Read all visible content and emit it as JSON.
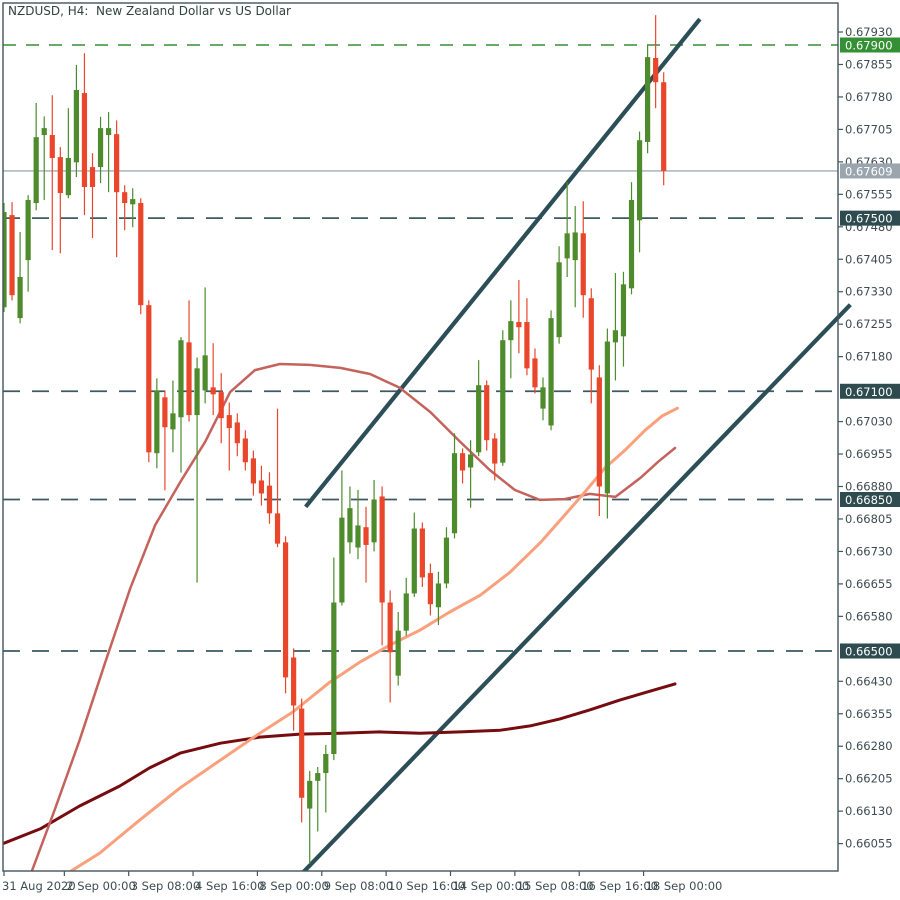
{
  "chart_data": {
    "type": "candlestick",
    "symbol": "NZDUSD",
    "timeframe": "H4",
    "title": "NZDUSD, H4:  New Zealand Dollar vs US Dollar",
    "candles_format": "[open, high, low, close]",
    "y_axis": {
      "tick_step": 0.00075,
      "visible_tick_labels": [
        "0.67930",
        "0.67855",
        "0.67780",
        "0.67705",
        "0.67630",
        "0.67555",
        "0.67480",
        "0.67405",
        "0.67330",
        "0.67255",
        "0.67180",
        "0.67030",
        "0.66955",
        "0.66880",
        "0.66805",
        "0.66730",
        "0.66655",
        "0.66580",
        "0.66430",
        "0.66355",
        "0.66280",
        "0.66205",
        "0.66130",
        "0.66055"
      ],
      "tick_prices": [
        0.6793,
        0.67855,
        0.6778,
        0.67705,
        0.6763,
        0.67555,
        0.6748,
        0.67405,
        0.6733,
        0.67255,
        0.6718,
        0.6703,
        0.66955,
        0.6688,
        0.66805,
        0.6673,
        0.66655,
        0.6658,
        0.6643,
        0.66355,
        0.6628,
        0.66205,
        0.6613,
        0.66055
      ]
    },
    "x_axis": {
      "tick_labels": [
        "31 Aug 2020",
        "2 Sep 00:00",
        "3 Sep 08:00",
        "4 Sep 16:00",
        "8 Sep 00:00",
        "9 Sep 08:00",
        "10 Sep 16:00",
        "14 Sep 00:00",
        "15 Sep 08:00",
        "16 Sep 16:00",
        "18 Sep 00:00"
      ],
      "tick_bars": [
        0,
        7.5,
        15.5,
        23.5,
        31.5,
        39.5,
        47.5,
        55.5,
        63.5,
        71.5,
        79.5
      ]
    },
    "current_price": {
      "price": 0.67609,
      "label": "0.67609"
    },
    "price_levels": [
      {
        "price": 0.679,
        "label": "0.67900",
        "style": "dashed",
        "color_key": "green"
      },
      {
        "price": 0.675,
        "label": "0.67500",
        "style": "dashed",
        "color_key": "dark"
      },
      {
        "price": 0.671,
        "label": "0.67100",
        "style": "dashed",
        "color_key": "dark"
      },
      {
        "price": 0.6685,
        "label": "0.66850",
        "style": "dashed",
        "color_key": "dark"
      },
      {
        "price": 0.665,
        "label": "0.66500",
        "style": "dashed",
        "color_key": "dark"
      }
    ],
    "trendlines": [
      {
        "name": "ascending-channel-upper",
        "from": [
          37.5,
          0.66833
        ],
        "to": [
          86.5,
          0.6796
        ]
      },
      {
        "name": "ascending-channel-lower",
        "from": [
          37.2,
          0.65989
        ],
        "to": [
          105.2,
          0.673
        ]
      }
    ],
    "moving_averages": [
      {
        "name": "ma-slow-maroon",
        "color_key": "maroon",
        "width": 3,
        "points": [
          [
            0,
            0.66056
          ],
          [
            4.5,
            0.66089
          ],
          [
            9.4,
            0.66142
          ],
          [
            14.4,
            0.66188
          ],
          [
            18.1,
            0.6623
          ],
          [
            21.9,
            0.66264
          ],
          [
            26.9,
            0.66287
          ],
          [
            31.8,
            0.66301
          ],
          [
            36.8,
            0.66308
          ],
          [
            41.8,
            0.6631
          ],
          [
            46.7,
            0.66313
          ],
          [
            51.7,
            0.6631
          ],
          [
            56.7,
            0.66313
          ],
          [
            61.7,
            0.66317
          ],
          [
            65.4,
            0.66327
          ],
          [
            69.1,
            0.66343
          ],
          [
            72.8,
            0.66364
          ],
          [
            76.6,
            0.66387
          ],
          [
            80.3,
            0.66407
          ],
          [
            83.4,
            0.66424
          ]
        ]
      },
      {
        "name": "ma-mid-rose",
        "color_key": "rose",
        "width": 2.5,
        "points": [
          [
            3.2,
            0.65978
          ],
          [
            6.3,
            0.66133
          ],
          [
            9.4,
            0.66294
          ],
          [
            12.6,
            0.66475
          ],
          [
            15.7,
            0.66645
          ],
          [
            18.8,
            0.66791
          ],
          [
            21.9,
            0.6689
          ],
          [
            25,
            0.66983
          ],
          [
            28.1,
            0.67098
          ],
          [
            31.2,
            0.67149
          ],
          [
            34.3,
            0.67163
          ],
          [
            38,
            0.67161
          ],
          [
            41.8,
            0.67154
          ],
          [
            45.5,
            0.6714
          ],
          [
            49.2,
            0.67108
          ],
          [
            53,
            0.67052
          ],
          [
            56.7,
            0.66983
          ],
          [
            60.4,
            0.66918
          ],
          [
            63.5,
            0.66872
          ],
          [
            66.6,
            0.66849
          ],
          [
            69.7,
            0.66851
          ],
          [
            72.8,
            0.66863
          ],
          [
            76,
            0.66856
          ],
          [
            79.1,
            0.669
          ],
          [
            81.3,
            0.66937
          ],
          [
            83.4,
            0.66969
          ]
        ]
      },
      {
        "name": "ma-fast-salmon",
        "color_key": "salmon",
        "width": 3,
        "points": [
          [
            7,
            0.65976
          ],
          [
            11.9,
            0.66033
          ],
          [
            16.9,
            0.6611
          ],
          [
            21.9,
            0.66184
          ],
          [
            26.9,
            0.66248
          ],
          [
            31.8,
            0.6631
          ],
          [
            35.9,
            0.66359
          ],
          [
            40.5,
            0.66428
          ],
          [
            44.3,
            0.66475
          ],
          [
            48,
            0.66514
          ],
          [
            51.7,
            0.66548
          ],
          [
            55.4,
            0.6659
          ],
          [
            59.2,
            0.66629
          ],
          [
            62.9,
            0.66682
          ],
          [
            66.6,
            0.66749
          ],
          [
            69.7,
            0.66814
          ],
          [
            72.2,
            0.66867
          ],
          [
            74.7,
            0.66923
          ],
          [
            77.2,
            0.66964
          ],
          [
            79.7,
            0.6701
          ],
          [
            81.8,
            0.67043
          ],
          [
            83.7,
            0.67061
          ]
        ]
      }
    ],
    "candles": [
      [
        0.67294,
        0.67535,
        0.67283,
        0.67514
      ],
      [
        0.67507,
        0.67537,
        0.6731,
        0.67322
      ],
      [
        0.67269,
        0.67468,
        0.67257,
        0.67364
      ],
      [
        0.67403,
        0.67553,
        0.6733,
        0.67542
      ],
      [
        0.67535,
        0.67766,
        0.67518,
        0.67687
      ],
      [
        0.67692,
        0.67735,
        0.67542,
        0.67708
      ],
      [
        0.67692,
        0.67784,
        0.67426,
        0.67639
      ],
      [
        0.67641,
        0.67664,
        0.67419,
        0.67558
      ],
      [
        0.67553,
        0.67754,
        0.67546,
        0.67639
      ],
      [
        0.67629,
        0.67854,
        0.67595,
        0.67796
      ],
      [
        0.67789,
        0.67881,
        0.67507,
        0.67572
      ],
      [
        0.67618,
        0.6765,
        0.67454,
        0.67572
      ],
      [
        0.67618,
        0.67734,
        0.67581,
        0.67708
      ],
      [
        0.67692,
        0.67745,
        0.6756,
        0.67708
      ],
      [
        0.67694,
        0.67726,
        0.6741,
        0.6756
      ],
      [
        0.6756,
        0.67576,
        0.67472,
        0.67535
      ],
      [
        0.67532,
        0.67569,
        0.67479,
        0.67544
      ],
      [
        0.67535,
        0.67546,
        0.67278,
        0.67299
      ],
      [
        0.67299,
        0.6731,
        0.66936,
        0.66959
      ],
      [
        0.66957,
        0.6713,
        0.66922,
        0.67102
      ],
      [
        0.67086,
        0.67102,
        0.66871,
        0.67017
      ],
      [
        0.67012,
        0.67125,
        0.66959,
        0.67049
      ],
      [
        0.6704,
        0.67225,
        0.66912,
        0.67218
      ],
      [
        0.67213,
        0.6731,
        0.6703,
        0.67045
      ],
      [
        0.67045,
        0.67178,
        0.66658,
        0.67153
      ],
      [
        0.67102,
        0.6734,
        0.67072,
        0.67183
      ],
      [
        0.67109,
        0.67211,
        0.67045,
        0.67093
      ],
      [
        0.67098,
        0.67142,
        0.6698,
        0.67038
      ],
      [
        0.67045,
        0.67074,
        0.66917,
        0.67015
      ],
      [
        0.67028,
        0.67049,
        0.6695,
        0.6698
      ],
      [
        0.66991,
        0.6701,
        0.66917,
        0.66936
      ],
      [
        0.66945,
        0.66963,
        0.66859,
        0.66887
      ],
      [
        0.66894,
        0.66928,
        0.66836,
        0.66864
      ],
      [
        0.66882,
        0.66913,
        0.66794,
        0.66818
      ],
      [
        0.66818,
        0.6706,
        0.6674,
        0.66748
      ],
      [
        0.66751,
        0.66765,
        0.66402,
        0.66439
      ],
      [
        0.66485,
        0.66506,
        0.66316,
        0.66374
      ],
      [
        0.66367,
        0.6639,
        0.66104,
        0.66161
      ],
      [
        0.66136,
        0.66223,
        0.66008,
        0.662
      ],
      [
        0.662,
        0.66232,
        0.66083,
        0.66218
      ],
      [
        0.66218,
        0.66283,
        0.66127,
        0.66262
      ],
      [
        0.66262,
        0.66716,
        0.66248,
        0.66612
      ],
      [
        0.66612,
        0.66917,
        0.66605,
        0.66808
      ],
      [
        0.66751,
        0.6688,
        0.66725,
        0.6683
      ],
      [
        0.66739,
        0.66872,
        0.66712,
        0.6679
      ],
      [
        0.66786,
        0.66833,
        0.66658,
        0.66745
      ],
      [
        0.66751,
        0.66895,
        0.6673,
        0.6685
      ],
      [
        0.66857,
        0.6688,
        0.66513,
        0.66612
      ],
      [
        0.66612,
        0.6664,
        0.66381,
        0.66497
      ],
      [
        0.66443,
        0.6659,
        0.6642,
        0.66547
      ],
      [
        0.66547,
        0.66669,
        0.66535,
        0.66633
      ],
      [
        0.66633,
        0.6682,
        0.66625,
        0.66783
      ],
      [
        0.66783,
        0.66797,
        0.66648,
        0.6667
      ],
      [
        0.6668,
        0.66702,
        0.66582,
        0.66608
      ],
      [
        0.66601,
        0.66683,
        0.6656,
        0.66656
      ],
      [
        0.66656,
        0.66786,
        0.66645,
        0.66762
      ],
      [
        0.66772,
        0.67003,
        0.6676,
        0.66957
      ],
      [
        0.66957,
        0.66968,
        0.66887,
        0.66917
      ],
      [
        0.66924,
        0.66987,
        0.66831,
        0.66954
      ],
      [
        0.66959,
        0.67172,
        0.6695,
        0.67114
      ],
      [
        0.67114,
        0.67125,
        0.66963,
        0.66987
      ],
      [
        0.66991,
        0.67003,
        0.66894,
        0.66933
      ],
      [
        0.66935,
        0.67241,
        0.66928,
        0.67218
      ],
      [
        0.67218,
        0.6731,
        0.6713,
        0.67262
      ],
      [
        0.6726,
        0.67357,
        0.67188,
        0.67248
      ],
      [
        0.6726,
        0.67315,
        0.67137,
        0.67153
      ],
      [
        0.67176,
        0.67199,
        0.67095,
        0.67109
      ],
      [
        0.6706,
        0.67132,
        0.67033,
        0.67109
      ],
      [
        0.67021,
        0.67287,
        0.6701,
        0.67269
      ],
      [
        0.67225,
        0.67435,
        0.6721,
        0.67398
      ],
      [
        0.67407,
        0.67583,
        0.67364,
        0.67465
      ],
      [
        0.67403,
        0.67528,
        0.67294,
        0.67467
      ],
      [
        0.67465,
        0.67539,
        0.6727,
        0.67322
      ],
      [
        0.67315,
        0.67338,
        0.67072,
        0.6715
      ],
      [
        0.67132,
        0.6716,
        0.66812,
        0.6688
      ],
      [
        0.66864,
        0.67245,
        0.66806,
        0.67215
      ],
      [
        0.67213,
        0.67373,
        0.67125,
        0.67241
      ],
      [
        0.67227,
        0.67376,
        0.67157,
        0.67347
      ],
      [
        0.67338,
        0.67583,
        0.67324,
        0.67542
      ],
      [
        0.67495,
        0.677,
        0.67421,
        0.6768
      ],
      [
        0.67676,
        0.679,
        0.6765,
        0.67872
      ],
      [
        0.6787,
        0.67969,
        0.67754,
        0.67814
      ],
      [
        0.67814,
        0.67837,
        0.67576,
        0.67609
      ]
    ],
    "colors": {
      "background": "#ffffff",
      "frame": "#42565e",
      "axis_text": "#3e4c52",
      "candle_up": "#4e8b2d",
      "candle_down": "#e9462b",
      "green": "#349034",
      "dark": "#3d5a64",
      "badge_dark": "#2e4c50",
      "badge_gray": "#9aa5ae",
      "current_line": "#8b9aa6",
      "maroon": "#760c10",
      "rose": "#c4625c",
      "salmon": "#fba07c",
      "trendline": "#2c4e57"
    }
  }
}
